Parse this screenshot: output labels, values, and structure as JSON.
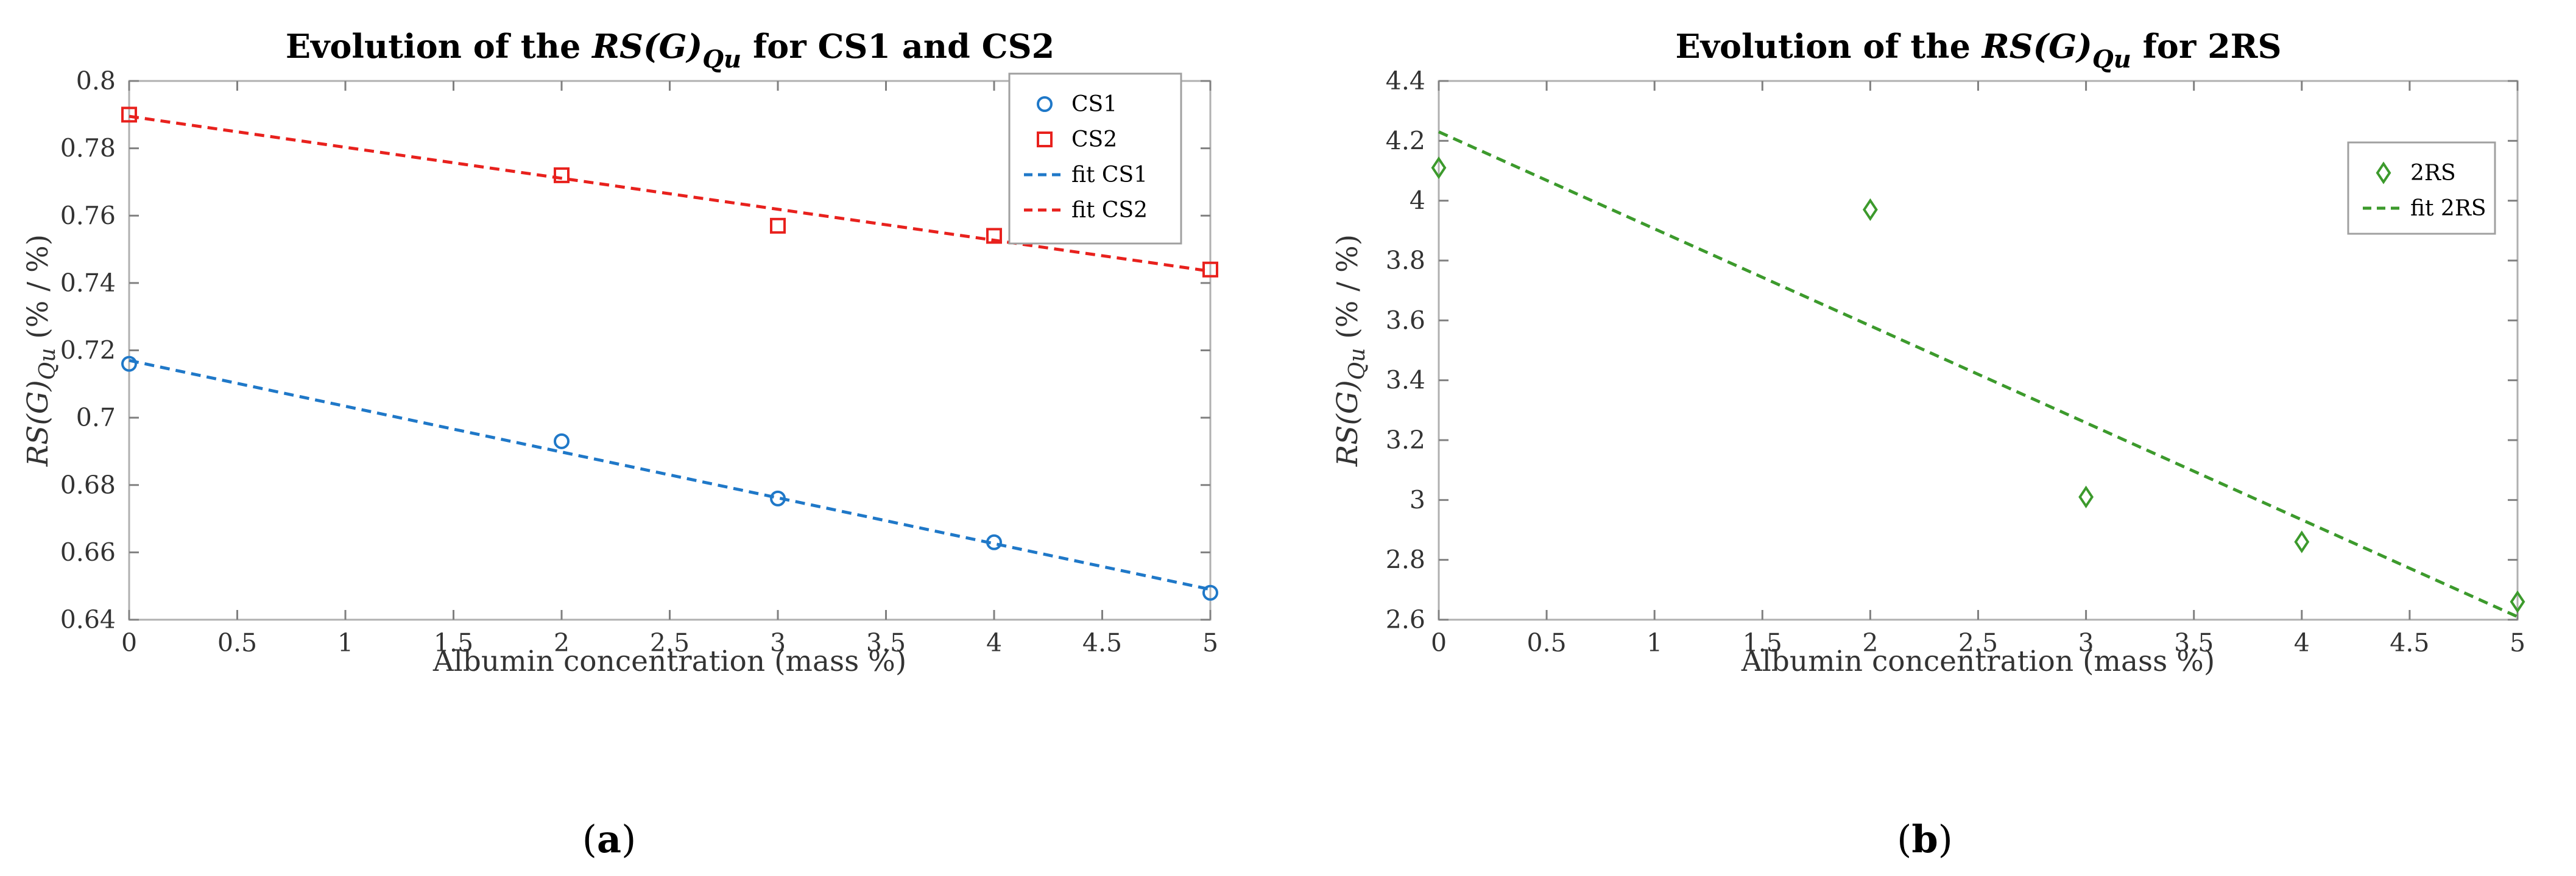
{
  "chart_data": [
    {
      "type": "scatter",
      "title": {
        "prefix": "Evolution of the",
        "italic": "RS(G)",
        "sub": "Qu",
        "suffix": "for CS1 and CS2"
      },
      "xlabel": "Albumin concentration (mass %)",
      "ylabel": {
        "italic": "RS(G)",
        "sub": "Qu",
        "unit": "(% / %)"
      },
      "xlim": [
        0,
        5
      ],
      "ylim": [
        0.64,
        0.8
      ],
      "xticks": [
        "0",
        "0.5",
        "1",
        "1.5",
        "2",
        "2.5",
        "3",
        "3.5",
        "4",
        "4.5",
        "5"
      ],
      "yticks": [
        "0.64",
        "0.66",
        "0.68",
        "0.7",
        "0.72",
        "0.74",
        "0.76",
        "0.78",
        "0.8"
      ],
      "grid": false,
      "legend_position": "top-right",
      "series": [
        {
          "name": "CS1",
          "kind": "points",
          "marker": "circle",
          "color": "#1f78c8",
          "x": [
            0,
            2,
            3,
            4,
            5
          ],
          "y": [
            0.716,
            0.693,
            0.676,
            0.663,
            0.648
          ]
        },
        {
          "name": "CS2",
          "kind": "points",
          "marker": "square",
          "color": "#e8211d",
          "x": [
            0,
            2,
            3,
            4,
            5
          ],
          "y": [
            0.79,
            0.772,
            0.757,
            0.754,
            0.744
          ]
        },
        {
          "name": "fit CS1",
          "kind": "line",
          "dash": true,
          "color": "#1f78c8",
          "x": [
            0,
            5
          ],
          "y": [
            0.717,
            0.649
          ]
        },
        {
          "name": "fit CS2",
          "kind": "line",
          "dash": true,
          "color": "#e8211d",
          "x": [
            0,
            5
          ],
          "y": [
            0.7895,
            0.7435
          ]
        }
      ],
      "caption": "a"
    },
    {
      "type": "scatter",
      "title": {
        "prefix": "Evolution of the",
        "italic": "RS(G)",
        "sub": "Qu",
        "suffix": "for 2RS"
      },
      "xlabel": "Albumin concentration (mass %)",
      "ylabel": {
        "italic": "RS(G)",
        "sub": "Qu",
        "unit": "(% / %)"
      },
      "xlim": [
        0,
        5
      ],
      "ylim": [
        2.6,
        4.4
      ],
      "xticks": [
        "0",
        "0.5",
        "1",
        "1.5",
        "2",
        "2.5",
        "3",
        "3.5",
        "4",
        "4.5",
        "5"
      ],
      "yticks": [
        "2.6",
        "2.8",
        "3",
        "3.2",
        "3.4",
        "3.6",
        "3.8",
        "4",
        "4.2",
        "4.4"
      ],
      "grid": false,
      "legend_position": "top-right",
      "series": [
        {
          "name": "2RS",
          "kind": "points",
          "marker": "diamond",
          "color": "#3c9a2c",
          "x": [
            0,
            2,
            3,
            4,
            5
          ],
          "y": [
            4.11,
            3.97,
            3.01,
            2.86,
            2.66
          ]
        },
        {
          "name": "fit 2RS",
          "kind": "line",
          "dash": true,
          "color": "#3c9a2c",
          "x": [
            0,
            5
          ],
          "y": [
            4.23,
            2.61
          ]
        }
      ],
      "caption": "b"
    }
  ]
}
